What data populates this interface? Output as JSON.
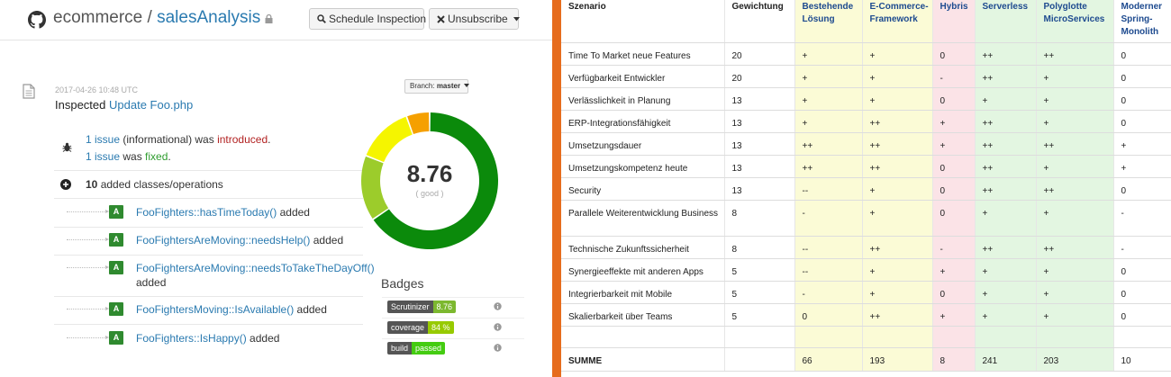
{
  "left": {
    "header": {
      "org": "ecommerce",
      "separator": " / ",
      "repo": "salesAnalysis",
      "schedule_label": "Schedule Inspection",
      "unsubscribe_label": "Unsubscribe"
    },
    "inspection": {
      "timestamp": "2017-04-26 10:48 UTC",
      "branch_prefix": "Branch:",
      "branch": "master",
      "inspected_prefix": "Inspected",
      "inspected_link": "Update Foo.php"
    },
    "issues": {
      "introduced_link": "1 issue",
      "introduced_mid": " (informational) was ",
      "introduced_word": "introduced",
      "introduced_end": ".",
      "fixed_link": "1 issue",
      "fixed_mid": " was ",
      "fixed_word": "fixed",
      "fixed_end": "."
    },
    "added": {
      "count": "10",
      "text": "added classes/operations"
    },
    "operations": [
      {
        "badge": "A",
        "name": "FooFighters::hasTimeToday()",
        "suffix": " added"
      },
      {
        "badge": "A",
        "name": "FooFightersAreMoving::needsHelp()",
        "suffix": " added"
      },
      {
        "badge": "A",
        "name": "FooFightersAreMoving::needsToTakeTheDayOff()",
        "suffix": " added"
      },
      {
        "badge": "A",
        "name": "FooFightersMoving::IsAvailable()",
        "suffix": " added"
      },
      {
        "badge": "A",
        "name": "FooFighters::IsHappy()",
        "suffix": " added"
      }
    ],
    "score": {
      "value": "8.76",
      "label": "( good )",
      "segments": [
        {
          "name": "very good",
          "fraction": 0.655,
          "color": "#0b8a0b"
        },
        {
          "name": "good",
          "fraction": 0.155,
          "color": "#9ccc2b"
        },
        {
          "name": "satisfactory",
          "fraction": 0.135,
          "color": "#f5f500"
        },
        {
          "name": "pass",
          "fraction": 0.055,
          "color": "#f5a000"
        }
      ]
    },
    "badges": {
      "title": "Badges",
      "items": [
        {
          "key": "Scrutinizer",
          "value": "8.76",
          "color": "#7cb82f"
        },
        {
          "key": "coverage",
          "value": "84 %",
          "color": "#97ca00"
        },
        {
          "key": "build",
          "value": "passed",
          "color": "#44cc11"
        }
      ]
    }
  },
  "table": {
    "headers": [
      "Szenario",
      "Gewichtung",
      "Bestehende Lösung",
      "E-Commerce-Framework",
      "Hybris",
      "Serverless",
      "Polyglotte MicroServices",
      "Moderner Spring-Monolith"
    ],
    "rows": [
      [
        "Time To Market neue Features",
        "20",
        "+",
        "+",
        "0",
        "++",
        "++",
        "0"
      ],
      [
        "Verfügbarkeit Entwickler",
        "20",
        "+",
        "+",
        "-",
        "++",
        "+",
        "0"
      ],
      [
        "Verlässlichkeit in Planung",
        "13",
        "+",
        "+",
        "0",
        "+",
        "+",
        "0"
      ],
      [
        "ERP-Integrationsfähigkeit",
        "13",
        "+",
        "++",
        "+",
        "++",
        "+",
        "0"
      ],
      [
        "Umsetzungsdauer",
        "13",
        "++",
        "++",
        "+",
        "++",
        "++",
        "+"
      ],
      [
        "Umsetzungskompetenz heute",
        "13",
        "++",
        "++",
        "0",
        "++",
        "+",
        "+"
      ],
      [
        "Security",
        "13",
        "--",
        "+",
        "0",
        "++",
        "++",
        "0"
      ],
      [
        "Parallele Weiterentwicklung Business",
        "8",
        "-",
        "+",
        "0",
        "+",
        "+",
        "-"
      ],
      [
        "Technische Zukunftssicherheit",
        "8",
        "--",
        "++",
        "-",
        "++",
        "++",
        "-"
      ],
      [
        "Synergieeffekte mit anderen Apps",
        "5",
        "--",
        "+",
        "+",
        "+",
        "+",
        "0"
      ],
      [
        "Integrierbarkeit mit Mobile",
        "5",
        "-",
        "+",
        "0",
        "+",
        "+",
        "0"
      ],
      [
        "Skalierbarkeit über Teams",
        "5",
        "0",
        "++",
        "+",
        "+",
        "+",
        "0"
      ]
    ],
    "sum": [
      "SUMME",
      "",
      "66",
      "193",
      "8",
      "241",
      "203",
      "10"
    ]
  },
  "colors": {
    "accent_divider": "#e66c1d",
    "link": "#2a7ab0",
    "col_yellow": "#fbfbd6",
    "col_pink": "#fbe3e7",
    "col_green": "#e3f6e1"
  }
}
